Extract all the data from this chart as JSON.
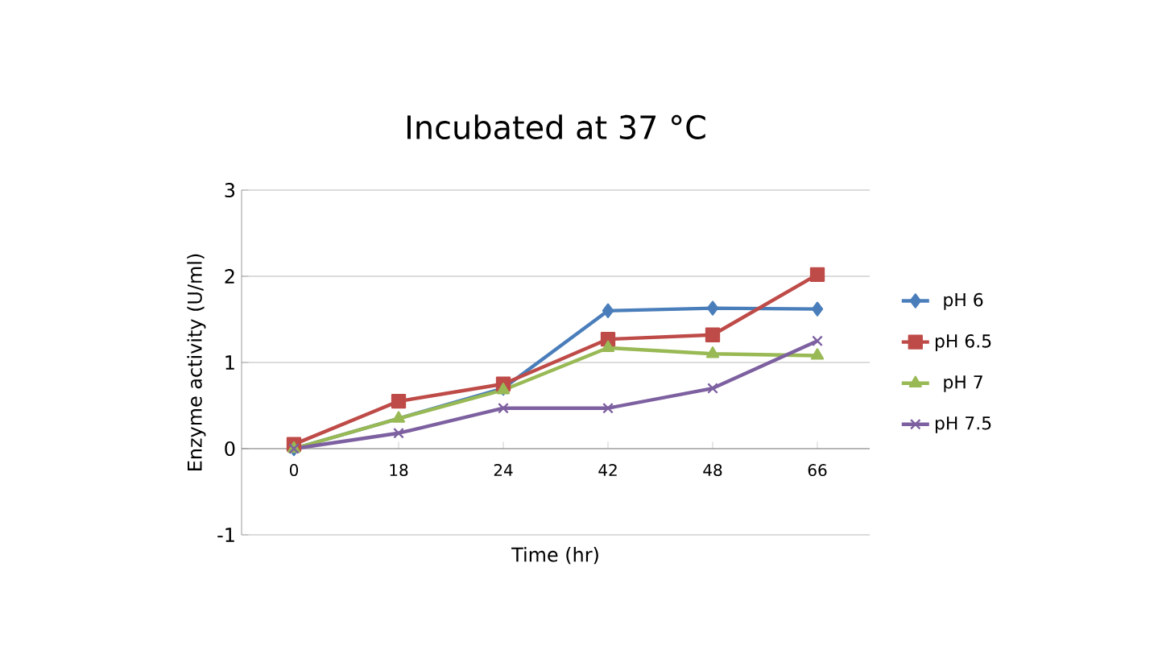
{
  "chart_data": {
    "type": "line",
    "title": "Incubated at 37 °C",
    "xlabel": "Time (hr)",
    "ylabel": "Enzyme activity (U/ml)",
    "categories": [
      "0",
      "18",
      "24",
      "42",
      "48",
      "66"
    ],
    "series": [
      {
        "name": "pH 6",
        "color": "#4a7ebb",
        "marker": "diamond",
        "values": [
          0,
          null,
          0.7,
          1.6,
          1.63,
          1.62
        ]
      },
      {
        "name": "pH 6.5",
        "color": "#be4b48",
        "marker": "square",
        "values": [
          0.05,
          0.55,
          0.75,
          1.27,
          1.32,
          2.02
        ]
      },
      {
        "name": "pH 7",
        "color": "#98b954",
        "marker": "triangle",
        "values": [
          0,
          0.35,
          0.68,
          1.17,
          1.1,
          1.08
        ]
      },
      {
        "name": "pH 7.5",
        "color": "#7d60a0",
        "marker": "cross",
        "values": [
          0,
          0.18,
          0.47,
          0.47,
          0.7,
          1.25
        ]
      }
    ],
    "ylim": [
      -1,
      3
    ],
    "yticks": [
      -1,
      0,
      1,
      2,
      3
    ],
    "grid": "y",
    "legend": "right",
    "line_style": "solid"
  }
}
